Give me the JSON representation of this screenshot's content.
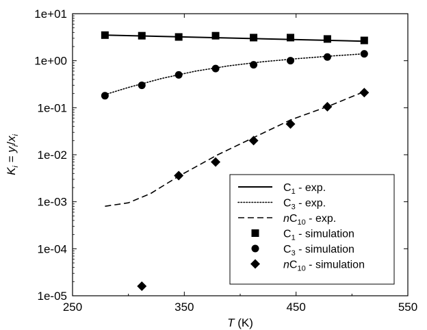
{
  "chart_data": {
    "type": "scatter",
    "xlabel": "T (K)",
    "xlabel_italic_part": "T",
    "xlabel_rest": " (K)",
    "ylabel": "K_i = y_i/x_i",
    "xlim": [
      250,
      550
    ],
    "ylim": [
      1e-05,
      10
    ],
    "yscale": "log",
    "xticks": [
      250,
      350,
      450,
      550
    ],
    "yticks": [
      1e-05,
      0.0001,
      0.001,
      0.01,
      0.1,
      1,
      10
    ],
    "xtick_labels": [
      "250",
      "350",
      "450",
      "550"
    ],
    "ytick_labels": [
      "1e-05",
      "1e-04",
      "1e-03",
      "1e-02",
      "1e-01",
      "1e+00",
      "1e+01"
    ],
    "legend_position": "lower-right",
    "series": [
      {
        "name": "C1 - exp.",
        "legend_main": "C",
        "legend_sub": "1",
        "legend_rest": " - exp.",
        "style": "solid",
        "x": [
          279,
          511
        ],
        "y": [
          3.5,
          2.6
        ]
      },
      {
        "name": "C3 - exp.",
        "legend_main": "C",
        "legend_sub": "3",
        "legend_rest": " - exp.",
        "style": "dotted",
        "x": [
          279,
          300,
          330,
          360,
          390,
          420,
          450,
          480,
          511
        ],
        "y": [
          0.19,
          0.27,
          0.42,
          0.6,
          0.78,
          0.95,
          1.1,
          1.25,
          1.4
        ]
      },
      {
        "name": "nC10 - exp.",
        "legend_prefix": "n",
        "legend_main": "C",
        "legend_sub": "10",
        "legend_rest": " - exp.",
        "style": "dashed",
        "x": [
          279,
          300,
          320,
          345,
          380,
          410,
          445,
          480,
          511
        ],
        "y": [
          0.0008,
          0.00095,
          0.0015,
          0.0035,
          0.01,
          0.022,
          0.055,
          0.11,
          0.22
        ]
      },
      {
        "name": "C1 - simulation",
        "legend_main": "C",
        "legend_sub": "1",
        "legend_rest": " - simulation",
        "marker": "square",
        "x": [
          279,
          312,
          345,
          378,
          412,
          445,
          478,
          511
        ],
        "y": [
          3.5,
          3.4,
          3.2,
          3.4,
          3.1,
          3.1,
          2.9,
          2.7
        ]
      },
      {
        "name": "C3 - simulation",
        "legend_main": "C",
        "legend_sub": "3",
        "legend_rest": " - simulation",
        "marker": "circle",
        "x": [
          279,
          312,
          345,
          378,
          412,
          445,
          478,
          511
        ],
        "y": [
          0.18,
          0.3,
          0.5,
          0.68,
          0.82,
          1.0,
          1.2,
          1.4
        ]
      },
      {
        "name": "nC10 - simulation",
        "legend_prefix": "n",
        "legend_main": "C",
        "legend_sub": "10",
        "legend_rest": " - simulation",
        "marker": "diamond",
        "x": [
          312,
          345,
          378,
          412,
          445,
          478,
          511
        ],
        "y": [
          1.6e-05,
          0.0036,
          0.007,
          0.02,
          0.045,
          0.105,
          0.21
        ]
      }
    ]
  }
}
